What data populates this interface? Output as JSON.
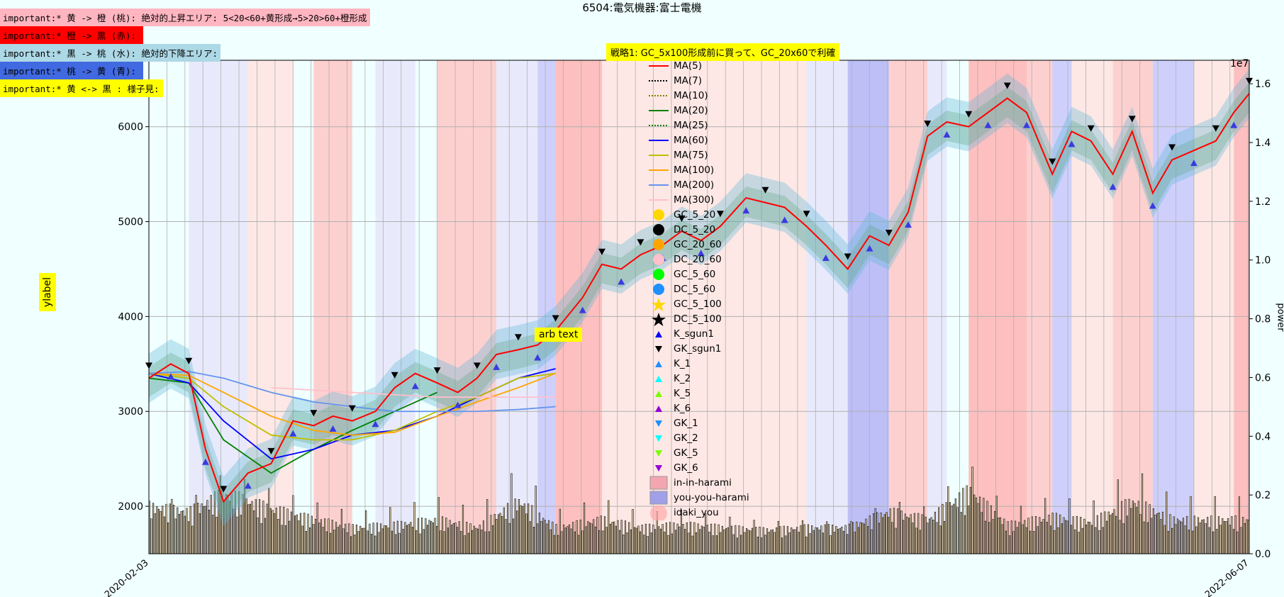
{
  "title": "6504:電気機器:富士電機",
  "annotations": [
    {
      "text": "important:* 黄 -> 橙 (桃): 絶対的上昇エリア: 5<20<60+黄形成→5>20>60+橙形成",
      "bg": "#ffb6c1"
    },
    {
      "text": "important:* 橙 -> 黒 (赤):",
      "bg": "#ff0000"
    },
    {
      "text": "important:* 黒 -> 桃 (水): 絶対的下降エリア:",
      "bg": "#add8e6"
    },
    {
      "text": "important:* 桃 -> 黄 (青):",
      "bg": "#4169e1"
    },
    {
      "text": "important:* 黄 <-> 黒 : 様子見:",
      "bg": "#ffff00"
    }
  ],
  "strategy_note": "戦略1: GC_5x100形成前に買って、GC_20x60で利確",
  "arb_text": "arb text",
  "ylabel": "ylabel",
  "y2label": "power",
  "y2_exponent": "1e7",
  "legend": [
    {
      "label": "MA(5)",
      "kind": "line",
      "color": "#ff0000",
      "style": "solid"
    },
    {
      "label": "MA(7)",
      "kind": "line",
      "color": "#000000",
      "style": "dotted"
    },
    {
      "label": "MA(10)",
      "kind": "line",
      "color": "#808000",
      "style": "dotted"
    },
    {
      "label": "MA(20)",
      "kind": "line",
      "color": "#008000",
      "style": "solid"
    },
    {
      "label": "MA(25)",
      "kind": "line",
      "color": "#008000",
      "style": "dotted"
    },
    {
      "label": "MA(60)",
      "kind": "line",
      "color": "#0000ff",
      "style": "solid"
    },
    {
      "label": "MA(75)",
      "kind": "line",
      "color": "#bfbf00",
      "style": "solid"
    },
    {
      "label": "MA(100)",
      "kind": "line",
      "color": "#ffa500",
      "style": "solid"
    },
    {
      "label": "MA(200)",
      "kind": "line",
      "color": "#6495ed",
      "style": "solid"
    },
    {
      "label": "MA(300)",
      "kind": "line",
      "color": "#ffc0cb",
      "style": "solid"
    },
    {
      "label": "GC_5_20",
      "kind": "circle",
      "color": "#ffd700"
    },
    {
      "label": "DC_5_20",
      "kind": "circle",
      "color": "#000000"
    },
    {
      "label": "GC_20_60",
      "kind": "circle",
      "color": "#ffa500"
    },
    {
      "label": "DC_20_60",
      "kind": "circle",
      "color": "#ffc0cb"
    },
    {
      "label": "GC_5_60",
      "kind": "circle",
      "color": "#00ff00"
    },
    {
      "label": "DC_5_60",
      "kind": "circle",
      "color": "#1e90ff"
    },
    {
      "label": "GC_5_100",
      "kind": "star",
      "color": "#ffd700"
    },
    {
      "label": "DC_5_100",
      "kind": "star",
      "color": "#000000"
    },
    {
      "label": "K_sgun1",
      "kind": "tri-up",
      "color": "#0000ff"
    },
    {
      "label": "GK_sgun1",
      "kind": "tri-down",
      "color": "#000000"
    },
    {
      "label": "K_1",
      "kind": "tri-up",
      "color": "#1e90ff"
    },
    {
      "label": "K_2",
      "kind": "tri-up",
      "color": "#00ffff"
    },
    {
      "label": "K_5",
      "kind": "tri-up",
      "color": "#7cfc00"
    },
    {
      "label": "K_6",
      "kind": "tri-up",
      "color": "#9400d3"
    },
    {
      "label": "GK_1",
      "kind": "tri-down",
      "color": "#1e90ff"
    },
    {
      "label": "GK_2",
      "kind": "tri-down",
      "color": "#00ffff"
    },
    {
      "label": "GK_5",
      "kind": "tri-down",
      "color": "#7cfc00"
    },
    {
      "label": "GK_6",
      "kind": "tri-down",
      "color": "#9400d3"
    },
    {
      "label": "in-in-harami",
      "kind": "patch",
      "color": "#f4a6b0"
    },
    {
      "label": "you-you-harami",
      "kind": "patch",
      "color": "#a0a0e8"
    },
    {
      "label": "idaki_you",
      "kind": "bigcircle",
      "color": "#ffaaaa"
    }
  ],
  "chart_data": {
    "type": "line",
    "title": "6504:電気機器:富士電機",
    "ylabel": "ylabel",
    "y2label": "power",
    "ylim": [
      1500,
      6700
    ],
    "yticks": [
      2000,
      3000,
      4000,
      5000,
      6000
    ],
    "y2lim": [
      0,
      16800000
    ],
    "y2ticks": [
      0,
      2000000,
      4000000,
      6000000,
      8000000,
      10000000,
      12000000,
      14000000,
      16000000
    ],
    "y2ticklabels": [
      "0.0",
      "0.2",
      "0.4",
      "0.6",
      "0.8",
      "1.0",
      "1.2",
      "1.4",
      "1.6"
    ],
    "xlim": [
      "2020-02-03",
      "2022-06-07"
    ],
    "grid": true,
    "legend_position": "top-center",
    "x_first_label": "2020-02-03",
    "x_last_label": "2022-06-07",
    "price_series": {
      "name": "MA(5)",
      "x": [
        "2020-02-03",
        "2020-02-20",
        "2020-03-05",
        "2020-03-18",
        "2020-04-01",
        "2020-04-20",
        "2020-05-08",
        "2020-05-25",
        "2020-06-10",
        "2020-06-25",
        "2020-07-10",
        "2020-07-28",
        "2020-08-12",
        "2020-08-28",
        "2020-09-14",
        "2020-09-30",
        "2020-10-15",
        "2020-10-30",
        "2020-11-16",
        "2020-12-01",
        "2020-12-15",
        "2021-01-05",
        "2021-01-20",
        "2021-02-04",
        "2021-02-19",
        "2021-03-08",
        "2021-03-23",
        "2021-04-07",
        "2021-04-22",
        "2021-05-12",
        "2021-05-27",
        "2021-06-11",
        "2021-06-28",
        "2021-07-13",
        "2021-07-30",
        "2021-08-16",
        "2021-08-31",
        "2021-09-15",
        "2021-09-30",
        "2021-10-15",
        "2021-11-01",
        "2021-11-16",
        "2021-12-01",
        "2021-12-16",
        "2022-01-05",
        "2022-01-20",
        "2022-02-04",
        "2022-02-21",
        "2022-03-08",
        "2022-03-24",
        "2022-04-08",
        "2022-04-25",
        "2022-05-12",
        "2022-05-26",
        "2022-06-07"
      ],
      "y": [
        3350,
        3500,
        3400,
        2600,
        2050,
        2350,
        2450,
        2900,
        2850,
        2950,
        2900,
        3000,
        3250,
        3400,
        3300,
        3200,
        3350,
        3600,
        3650,
        3700,
        3850,
        4200,
        4550,
        4500,
        4650,
        4750,
        4900,
        4800,
        4950,
        5250,
        5200,
        5150,
        4950,
        4750,
        4500,
        4850,
        4750,
        5100,
        5900,
        6050,
        6000,
        6150,
        6300,
        6150,
        5500,
        5950,
        5850,
        5500,
        5950,
        5300,
        5650,
        5750,
        5850,
        6150,
        6350
      ]
    },
    "ma_lines": [
      {
        "name": "MA(20)",
        "x": [
          "2020-02-03",
          "2020-03-05",
          "2020-04-01",
          "2020-05-08",
          "2020-06-10",
          "2020-07-10",
          "2020-08-12",
          "2020-09-14"
        ],
        "y": [
          3350,
          3300,
          2700,
          2350,
          2600,
          2800,
          3000,
          3200
        ]
      },
      {
        "name": "MA(60)",
        "x": [
          "2020-02-03",
          "2020-03-05",
          "2020-04-01",
          "2020-05-08",
          "2020-06-10",
          "2020-07-10",
          "2020-08-12",
          "2020-09-14",
          "2020-10-15",
          "2020-11-16",
          "2020-12-15"
        ],
        "y": [
          3400,
          3300,
          2900,
          2500,
          2600,
          2750,
          2800,
          2950,
          3150,
          3350,
          3450
        ]
      },
      {
        "name": "MA(75)",
        "x": [
          "2020-02-03",
          "2020-03-05",
          "2020-04-01",
          "2020-05-08",
          "2020-06-10",
          "2020-07-10",
          "2020-08-12",
          "2020-09-14",
          "2020-10-15",
          "2020-11-16",
          "2020-12-15"
        ],
        "y": [
          3400,
          3350,
          3050,
          2750,
          2700,
          2700,
          2800,
          3000,
          3150,
          3350,
          3400
        ]
      },
      {
        "name": "MA(100)",
        "x": [
          "2020-02-03",
          "2020-03-05",
          "2020-04-01",
          "2020-05-08",
          "2020-06-10",
          "2020-07-10",
          "2020-08-12",
          "2020-09-14",
          "2020-10-15",
          "2020-11-16",
          "2020-12-15"
        ],
        "y": [
          3400,
          3380,
          3200,
          2950,
          2800,
          2750,
          2780,
          2950,
          3100,
          3250,
          3400
        ]
      },
      {
        "name": "MA(200)",
        "x": [
          "2020-02-03",
          "2020-03-05",
          "2020-04-01",
          "2020-05-08",
          "2020-06-10",
          "2020-07-10",
          "2020-08-12",
          "2020-09-14",
          "2020-10-15",
          "2020-11-16",
          "2020-12-15"
        ],
        "y": [
          3400,
          3420,
          3350,
          3200,
          3100,
          3050,
          3000,
          3000,
          3000,
          3020,
          3050
        ]
      },
      {
        "name": "MA(300)",
        "x": [
          "2020-05-08",
          "2020-07-10",
          "2020-09-14",
          "2020-11-16",
          "2020-12-15"
        ],
        "y": [
          3250,
          3200,
          3150,
          3150,
          3150
        ]
      }
    ],
    "volume": {
      "name": "power",
      "x": [
        "2020-02-03",
        "2020-03-05",
        "2020-04-01",
        "2020-05-08",
        "2020-06-10",
        "2020-07-10",
        "2020-08-12",
        "2020-09-14",
        "2020-10-15",
        "2020-11-16",
        "2020-12-15",
        "2021-01-20",
        "2021-02-19",
        "2021-03-23",
        "2021-04-22",
        "2021-05-27",
        "2021-06-28",
        "2021-07-30",
        "2021-08-31",
        "2021-09-30",
        "2021-11-01",
        "2021-12-01",
        "2022-01-05",
        "2022-02-04",
        "2022-03-08",
        "2022-04-08",
        "2022-05-12",
        "2022-06-07"
      ],
      "y": [
        1800000,
        1600000,
        2300000,
        1700000,
        1300000,
        1000000,
        1100000,
        1300000,
        1000000,
        2000000,
        1000000,
        1300000,
        1000000,
        1100000,
        1000000,
        900000,
        1000000,
        1000000,
        1600000,
        1300000,
        2400000,
        1100000,
        1400000,
        1200000,
        2000000,
        1300000,
        1300000,
        1300000
      ]
    },
    "background_bands": [
      {
        "from": "2020-03-05",
        "to": "2020-04-20",
        "color": "#e6e6fa"
      },
      {
        "from": "2020-04-20",
        "to": "2020-05-25",
        "color": "#ffe4e1"
      },
      {
        "from": "2020-06-10",
        "to": "2020-07-10",
        "color": "#ffc8c8"
      },
      {
        "from": "2020-07-28",
        "to": "2020-08-28",
        "color": "#e6e6fa"
      },
      {
        "from": "2020-09-14",
        "to": "2020-10-30",
        "color": "#ffc8c8"
      },
      {
        "from": "2020-10-30",
        "to": "2020-12-01",
        "color": "#e6e6fa"
      },
      {
        "from": "2020-12-01",
        "to": "2020-12-15",
        "color": "#c8c8fa"
      },
      {
        "from": "2020-12-15",
        "to": "2021-01-20",
        "color": "#ffb4b4"
      },
      {
        "from": "2021-01-20",
        "to": "2021-05-12",
        "color": "#ffe4e1"
      },
      {
        "from": "2021-05-12",
        "to": "2021-06-28",
        "color": "#ffe4e1"
      },
      {
        "from": "2021-06-28",
        "to": "2021-07-30",
        "color": "#e6e6fa"
      },
      {
        "from": "2021-07-30",
        "to": "2021-08-31",
        "color": "#b4b4f5"
      },
      {
        "from": "2021-08-31",
        "to": "2021-09-30",
        "color": "#ffc8c8"
      },
      {
        "from": "2021-09-30",
        "to": "2021-10-15",
        "color": "#e6e6fa"
      },
      {
        "from": "2021-11-01",
        "to": "2021-12-16",
        "color": "#ffb4b4"
      },
      {
        "from": "2021-12-16",
        "to": "2022-01-05",
        "color": "#ffc8c8"
      },
      {
        "from": "2022-01-05",
        "to": "2022-01-20",
        "color": "#c8c8fa"
      },
      {
        "from": "2022-01-20",
        "to": "2022-02-21",
        "color": "#ffe4e1"
      },
      {
        "from": "2022-02-21",
        "to": "2022-03-24",
        "color": "#ffc8c8"
      },
      {
        "from": "2022-03-24",
        "to": "2022-04-25",
        "color": "#c8c8fa"
      },
      {
        "from": "2022-04-25",
        "to": "2022-05-26",
        "color": "#ffe4e1"
      },
      {
        "from": "2022-05-26",
        "to": "2022-06-07",
        "color": "#ffb4b4"
      }
    ]
  }
}
